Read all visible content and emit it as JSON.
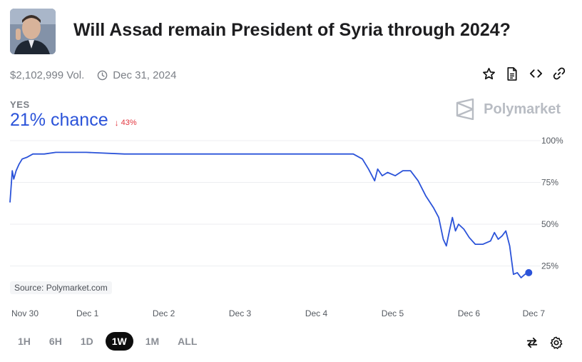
{
  "market": {
    "title": "Will Assad remain President of Syria through 2024?",
    "volume": "$2,102,999 Vol.",
    "end_date": "Dec 31, 2024"
  },
  "outcome": {
    "label": "YES",
    "chance_text": "21% chance",
    "change_text": "43%",
    "change_color": "#e2373f"
  },
  "brand": {
    "name": "Polymarket"
  },
  "actions": {
    "icons": [
      "star-icon",
      "document-icon",
      "code-icon",
      "link-icon"
    ]
  },
  "chart_source": "Source: Polymarket.com",
  "chart_data": {
    "type": "line",
    "x_ticks": [
      "Nov 30",
      "Dec 1",
      "Dec 2",
      "Dec 3",
      "Dec 4",
      "Dec 5",
      "Dec 6",
      "Dec 7"
    ],
    "y_ticks": [
      "100%",
      "75%",
      "50%",
      "25%"
    ],
    "ylim": [
      0,
      100
    ],
    "grid": true,
    "line_color": "#2b53d9",
    "series": [
      {
        "points": [
          [
            0.0,
            63
          ],
          [
            0.03,
            82
          ],
          [
            0.05,
            77
          ],
          [
            0.08,
            82
          ],
          [
            0.12,
            86
          ],
          [
            0.16,
            89
          ],
          [
            0.22,
            90
          ],
          [
            0.3,
            92
          ],
          [
            0.45,
            92
          ],
          [
            0.6,
            93
          ],
          [
            0.8,
            93
          ],
          [
            1.0,
            93
          ],
          [
            1.5,
            92
          ],
          [
            2.0,
            92
          ],
          [
            2.5,
            92
          ],
          [
            3.0,
            92
          ],
          [
            3.5,
            92
          ],
          [
            4.0,
            92
          ],
          [
            4.3,
            92
          ],
          [
            4.5,
            92
          ],
          [
            4.62,
            89
          ],
          [
            4.7,
            83
          ],
          [
            4.78,
            76
          ],
          [
            4.82,
            83
          ],
          [
            4.88,
            79
          ],
          [
            4.95,
            81
          ],
          [
            5.05,
            79
          ],
          [
            5.15,
            82
          ],
          [
            5.25,
            82
          ],
          [
            5.35,
            76
          ],
          [
            5.45,
            67
          ],
          [
            5.55,
            60
          ],
          [
            5.62,
            54
          ],
          [
            5.68,
            41
          ],
          [
            5.72,
            37
          ],
          [
            5.76,
            46
          ],
          [
            5.8,
            54
          ],
          [
            5.84,
            46
          ],
          [
            5.88,
            50
          ],
          [
            5.95,
            47
          ],
          [
            6.02,
            42
          ],
          [
            6.1,
            38
          ],
          [
            6.2,
            38
          ],
          [
            6.3,
            40
          ],
          [
            6.35,
            45
          ],
          [
            6.4,
            41
          ],
          [
            6.45,
            43
          ],
          [
            6.5,
            46
          ],
          [
            6.55,
            37
          ],
          [
            6.6,
            20
          ],
          [
            6.65,
            21
          ],
          [
            6.7,
            18
          ],
          [
            6.75,
            20
          ],
          [
            6.8,
            21
          ]
        ]
      }
    ]
  },
  "time_ranges": [
    "1H",
    "6H",
    "1D",
    "1W",
    "1M",
    "ALL"
  ],
  "active_range": "1W",
  "tools": [
    "swap-icon",
    "settings-icon"
  ]
}
